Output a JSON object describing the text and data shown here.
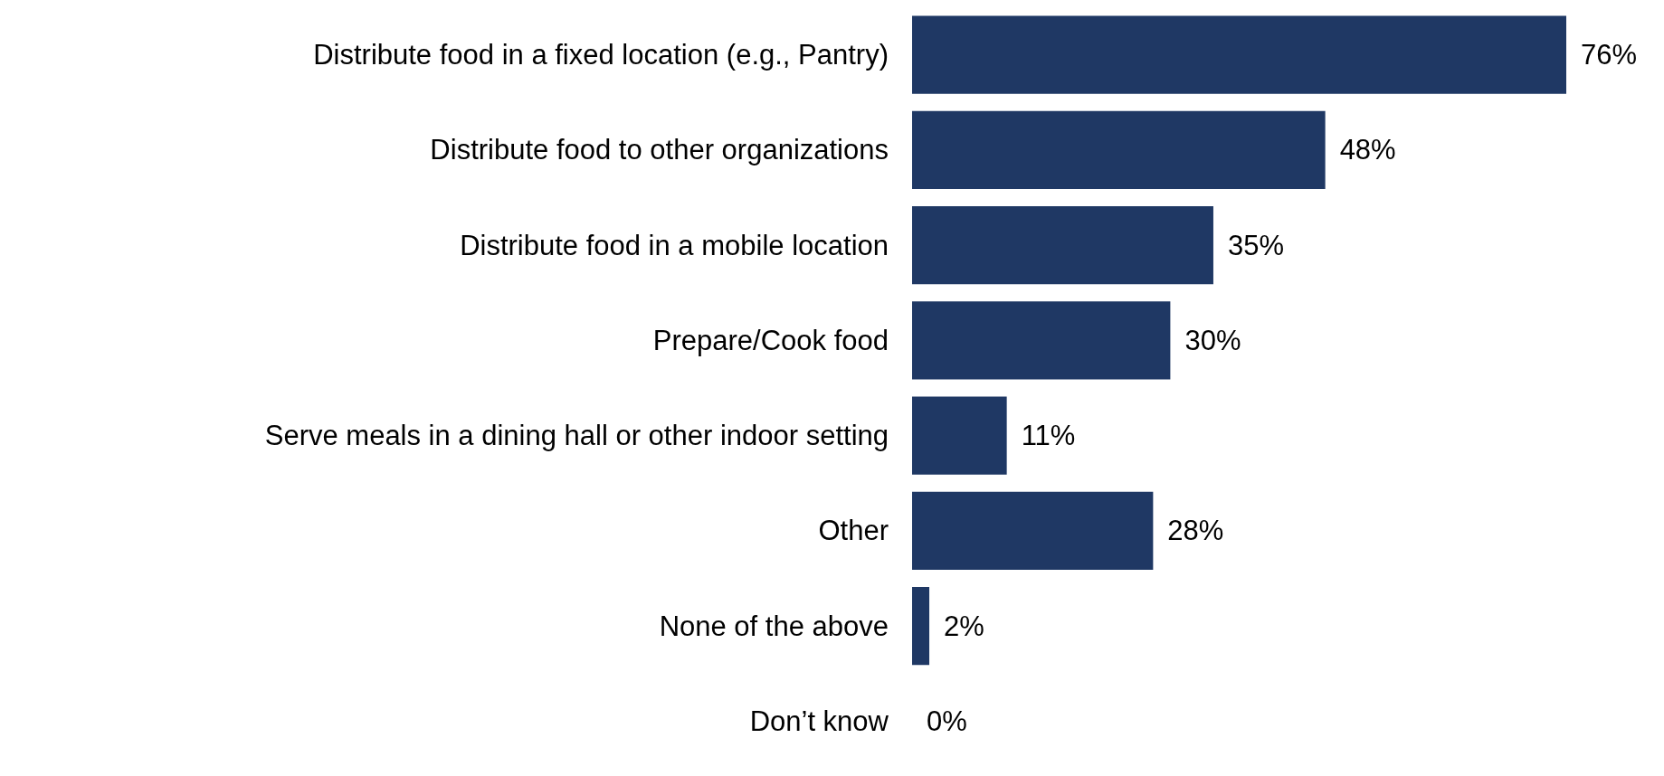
{
  "chart_data": {
    "type": "bar",
    "orientation": "horizontal",
    "categories": [
      "Distribute food in a fixed location (e.g., Pantry)",
      "Distribute food to other organizations",
      "Distribute food in a mobile location",
      "Prepare/Cook food",
      "Serve meals in a dining hall or other indoor setting",
      "Other",
      "None of the above",
      "Don’t know"
    ],
    "values": [
      76,
      48,
      35,
      30,
      11,
      28,
      2,
      0
    ],
    "value_labels": [
      "76%",
      "48%",
      "35%",
      "30%",
      "11%",
      "28%",
      "2%",
      "0%"
    ],
    "color": "#1f3864"
  }
}
